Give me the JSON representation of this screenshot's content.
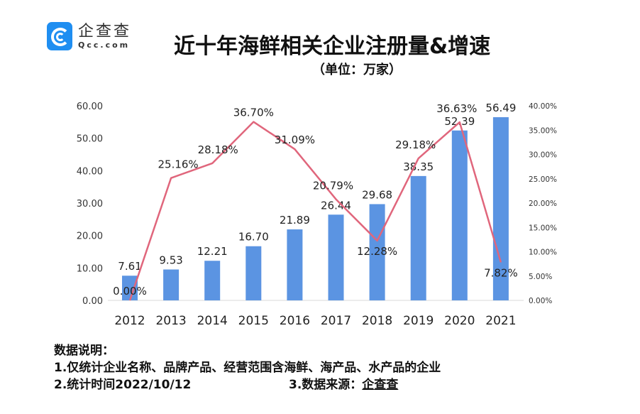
{
  "logo": {
    "cn": "企查查",
    "en": "Qcc.com"
  },
  "notes": {
    "heading": "数据说明：",
    "line1": "1.仅统计企业名称、品牌产品、经营范围含海鲜、海产品、水产品的企业",
    "line2": "2.统计时间2022/10/12",
    "line3_label": "3.数据来源：",
    "line3_source": "企查查"
  },
  "chart_data": {
    "type": "bar+line",
    "title": "近十年海鲜相关企业注册量&增速",
    "subtitle": "（单位：万家）",
    "categories": [
      "2012",
      "2013",
      "2014",
      "2015",
      "2016",
      "2017",
      "2018",
      "2019",
      "2020",
      "2021"
    ],
    "series": [
      {
        "name": "注册量",
        "type": "bar",
        "axis": "left",
        "color": "#5b94e2",
        "values": [
          7.61,
          9.53,
          12.21,
          16.7,
          21.89,
          26.44,
          29.68,
          38.35,
          52.39,
          56.49
        ],
        "labels": [
          "7.61",
          "9.53",
          "12.21",
          "16.70",
          "21.89",
          "26.44",
          "29.68",
          "38.35",
          "52.39",
          "56.49"
        ]
      },
      {
        "name": "增速",
        "type": "line",
        "axis": "right",
        "color": "#e0667c",
        "values": [
          0.0,
          25.16,
          28.18,
          36.7,
          31.09,
          20.79,
          12.28,
          29.18,
          36.63,
          7.82
        ],
        "labels": [
          "0.00%",
          "25.16%",
          "28.18%",
          "36.70%",
          "31.09%",
          "20.79%",
          "12.28%",
          "29.18%",
          "36.63%",
          "7.82%"
        ]
      }
    ],
    "left_axis": {
      "ylim": [
        0,
        60
      ],
      "ticks": [
        "0.00",
        "10.00",
        "20.00",
        "30.00",
        "40.00",
        "50.00",
        "60.00"
      ]
    },
    "right_axis": {
      "ylim": [
        0,
        40
      ],
      "ticks": [
        "0.00%",
        "5.00%",
        "10.00%",
        "15.00%",
        "20.00%",
        "25.00%",
        "30.00%",
        "35.00%",
        "40.00%"
      ]
    },
    "grid": false
  }
}
